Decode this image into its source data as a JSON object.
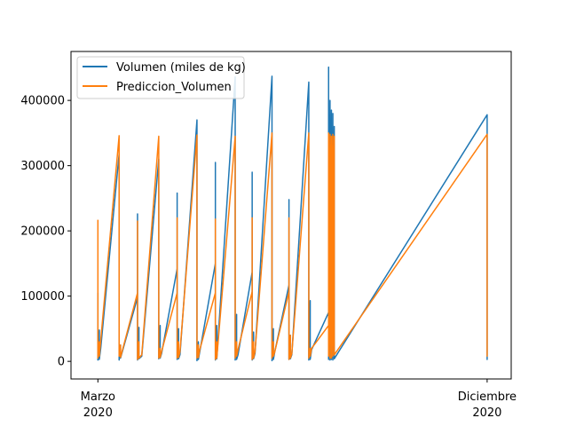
{
  "chart_data": {
    "type": "line",
    "title": "",
    "xlabel": "",
    "ylabel": "",
    "xlim": [
      "2020-02-11",
      "2020-12-18"
    ],
    "ylim": [
      -27000,
      475000
    ],
    "grid": false,
    "legend": {
      "placement": "top-left"
    },
    "x_ticks": [
      {
        "date": "2020-03-01",
        "line1": "Marzo",
        "line2": "2020"
      },
      {
        "date": "2020-12-01",
        "line1": "Diciembre",
        "line2": "2020"
      }
    ],
    "y_ticks": [
      {
        "value": 0,
        "label": "0"
      },
      {
        "value": 100000,
        "label": "100000"
      },
      {
        "value": 200000,
        "label": "200000"
      },
      {
        "value": 300000,
        "label": "300000"
      },
      {
        "value": 400000,
        "label": "400000"
      }
    ],
    "series": [
      {
        "name": "Volumen (miles de kg)",
        "color": "#1f77b4",
        "points": [
          [
            "2020-03-01",
            105000
          ],
          [
            "2020-03-01",
            2000
          ],
          [
            "2020-03-02",
            48000
          ],
          [
            "2020-03-02",
            3000
          ],
          [
            "2020-03-03",
            20000
          ],
          [
            "2020-03-16",
            318000
          ],
          [
            "2020-03-16",
            2000
          ],
          [
            "2020-03-17",
            25000
          ],
          [
            "2020-03-17",
            5000
          ],
          [
            "2020-03-29",
            98000
          ],
          [
            "2020-03-29",
            226000
          ],
          [
            "2020-03-29",
            2000
          ],
          [
            "2020-03-30",
            52000
          ],
          [
            "2020-03-30",
            4000
          ],
          [
            "2020-04-01",
            8000
          ],
          [
            "2020-04-13",
            310000
          ],
          [
            "2020-04-13",
            4000
          ],
          [
            "2020-04-14",
            55000
          ],
          [
            "2020-04-14",
            5000
          ],
          [
            "2020-04-15",
            12000
          ],
          [
            "2020-04-26",
            142000
          ],
          [
            "2020-04-26",
            258000
          ],
          [
            "2020-04-26",
            3000
          ],
          [
            "2020-04-27",
            50000
          ],
          [
            "2020-04-27",
            4000
          ],
          [
            "2020-04-28",
            10000
          ],
          [
            "2020-05-10",
            370000
          ],
          [
            "2020-05-10",
            1000
          ],
          [
            "2020-05-11",
            30000
          ],
          [
            "2020-05-11",
            3000
          ],
          [
            "2020-05-12",
            15000
          ],
          [
            "2020-05-23",
            150000
          ],
          [
            "2020-05-23",
            305000
          ],
          [
            "2020-05-23",
            2000
          ],
          [
            "2020-05-24",
            55000
          ],
          [
            "2020-05-24",
            4000
          ],
          [
            "2020-06-06",
            436000
          ],
          [
            "2020-06-06",
            2000
          ],
          [
            "2020-06-07",
            72000
          ],
          [
            "2020-06-07",
            3000
          ],
          [
            "2020-06-08",
            10000
          ],
          [
            "2020-06-18",
            137000
          ],
          [
            "2020-06-18",
            290000
          ],
          [
            "2020-06-18",
            2000
          ],
          [
            "2020-06-19",
            45000
          ],
          [
            "2020-06-19",
            4000
          ],
          [
            "2020-06-20",
            12000
          ],
          [
            "2020-07-02",
            437000
          ],
          [
            "2020-07-02",
            1000
          ],
          [
            "2020-07-03",
            50000
          ],
          [
            "2020-07-03",
            3000
          ],
          [
            "2020-07-04",
            15000
          ],
          [
            "2020-07-14",
            117000
          ],
          [
            "2020-07-14",
            248000
          ],
          [
            "2020-07-14",
            3000
          ],
          [
            "2020-07-15",
            40000
          ],
          [
            "2020-07-15",
            4000
          ],
          [
            "2020-07-16",
            10000
          ],
          [
            "2020-07-28",
            428000
          ],
          [
            "2020-07-28",
            2000
          ],
          [
            "2020-07-29",
            93000
          ],
          [
            "2020-07-29",
            3000
          ],
          [
            "2020-07-30",
            18000
          ],
          [
            "2020-08-11",
            75000
          ],
          [
            "2020-08-11",
            120000
          ],
          [
            "2020-08-11",
            451000
          ],
          [
            "2020-08-11",
            3000
          ],
          [
            "2020-08-12",
            400000
          ],
          [
            "2020-08-12",
            2000
          ],
          [
            "2020-08-12",
            390000
          ],
          [
            "2020-08-13",
            5000
          ],
          [
            "2020-08-13",
            385000
          ],
          [
            "2020-08-13",
            3000
          ],
          [
            "2020-08-14",
            380000
          ],
          [
            "2020-08-14",
            2000
          ],
          [
            "2020-08-15",
            360000
          ],
          [
            "2020-08-15",
            4000
          ],
          [
            "2020-12-01",
            378000
          ],
          [
            "2020-12-01",
            3000
          ],
          [
            "2020-12-01",
            350000
          ],
          [
            "2020-12-01",
            5000
          ]
        ]
      },
      {
        "name": "Prediccion_Volumen",
        "color": "#ff7f0e",
        "points": [
          [
            "2020-03-01",
            217000
          ],
          [
            "2020-03-01",
            5000
          ],
          [
            "2020-03-02",
            30000
          ],
          [
            "2020-03-02",
            8000
          ],
          [
            "2020-03-16",
            346000
          ],
          [
            "2020-03-16",
            8000
          ],
          [
            "2020-03-17",
            25000
          ],
          [
            "2020-03-17",
            6000
          ],
          [
            "2020-03-29",
            105000
          ],
          [
            "2020-03-29",
            215000
          ],
          [
            "2020-03-29",
            3000
          ],
          [
            "2020-03-30",
            30000
          ],
          [
            "2020-03-30",
            5000
          ],
          [
            "2020-04-01",
            10000
          ],
          [
            "2020-04-13",
            345000
          ],
          [
            "2020-04-13",
            5000
          ],
          [
            "2020-04-14",
            20000
          ],
          [
            "2020-04-14",
            6000
          ],
          [
            "2020-04-15",
            15000
          ],
          [
            "2020-04-26",
            105000
          ],
          [
            "2020-04-26",
            220000
          ],
          [
            "2020-04-26",
            5000
          ],
          [
            "2020-04-27",
            30000
          ],
          [
            "2020-04-27",
            6000
          ],
          [
            "2020-04-28",
            15000
          ],
          [
            "2020-05-10",
            347000
          ],
          [
            "2020-05-10",
            5000
          ],
          [
            "2020-05-11",
            25000
          ],
          [
            "2020-05-11",
            6000
          ],
          [
            "2020-05-12",
            18000
          ],
          [
            "2020-05-23",
            105000
          ],
          [
            "2020-05-23",
            218000
          ],
          [
            "2020-05-23",
            3000
          ],
          [
            "2020-05-24",
            30000
          ],
          [
            "2020-05-24",
            5000
          ],
          [
            "2020-06-06",
            345000
          ],
          [
            "2020-06-06",
            5000
          ],
          [
            "2020-06-07",
            30000
          ],
          [
            "2020-06-07",
            8000
          ],
          [
            "2020-06-08",
            18000
          ],
          [
            "2020-06-18",
            107000
          ],
          [
            "2020-06-18",
            220000
          ],
          [
            "2020-06-18",
            3000
          ],
          [
            "2020-06-19",
            30000
          ],
          [
            "2020-06-19",
            5000
          ],
          [
            "2020-06-20",
            15000
          ],
          [
            "2020-07-02",
            350000
          ],
          [
            "2020-07-02",
            5000
          ],
          [
            "2020-07-03",
            30000
          ],
          [
            "2020-07-03",
            8000
          ],
          [
            "2020-07-04",
            15000
          ],
          [
            "2020-07-14",
            107000
          ],
          [
            "2020-07-14",
            220000
          ],
          [
            "2020-07-14",
            3000
          ],
          [
            "2020-07-15",
            40000
          ],
          [
            "2020-07-15",
            5000
          ],
          [
            "2020-07-16",
            12000
          ],
          [
            "2020-07-28",
            350000
          ],
          [
            "2020-07-28",
            5000
          ],
          [
            "2020-07-29",
            20000
          ],
          [
            "2020-07-29",
            8000
          ],
          [
            "2020-07-30",
            20000
          ],
          [
            "2020-08-11",
            55000
          ],
          [
            "2020-08-11",
            350000
          ],
          [
            "2020-08-11",
            8000
          ],
          [
            "2020-08-12",
            345000
          ],
          [
            "2020-08-12",
            5000
          ],
          [
            "2020-08-12",
            348000
          ],
          [
            "2020-08-13",
            8000
          ],
          [
            "2020-08-13",
            345000
          ],
          [
            "2020-08-13",
            5000
          ],
          [
            "2020-08-14",
            348000
          ],
          [
            "2020-08-14",
            8000
          ],
          [
            "2020-08-15",
            345000
          ],
          [
            "2020-08-15",
            10000
          ],
          [
            "2020-12-01",
            348000
          ],
          [
            "2020-12-01",
            8000
          ],
          [
            "2020-12-01",
            347000
          ],
          [
            "2020-12-01",
            12000
          ]
        ]
      }
    ]
  }
}
